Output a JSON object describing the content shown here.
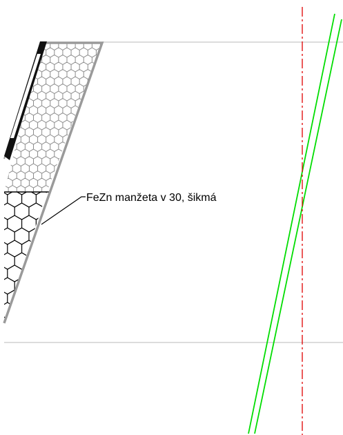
{
  "annotation": {
    "label": "FeZn manžeta v 30, šikmá"
  },
  "colors": {
    "background": "#ffffff",
    "guide_line": "#d0d0d0",
    "centerline": "#e00000",
    "green_lines": "#00dd00",
    "outline": "#9a9a9a",
    "fine_hatch": "#8c8c8c",
    "coarse_hatch": "#000000",
    "leader": "#000000"
  },
  "hatch_patterns": {
    "upper_region": "fine-hexagon",
    "lower_region": "coarse-hexagon"
  }
}
